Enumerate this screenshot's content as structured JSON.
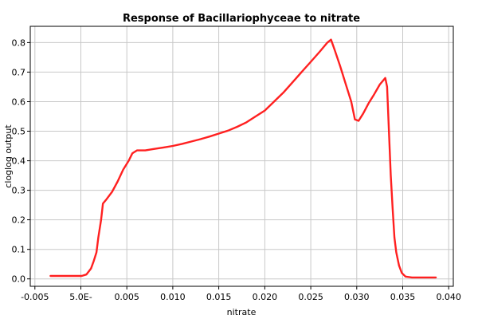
{
  "chart_data": {
    "type": "line",
    "title": "Response of Bacillariophyceae to nitrate",
    "xlabel": "nitrate",
    "ylabel": "cloglog output",
    "xlim": [
      -0.0055,
      0.0405
    ],
    "ylim": [
      -0.025,
      0.855
    ],
    "grid": true,
    "x_ticks": [
      -0.005,
      0.0,
      0.005,
      0.01,
      0.015,
      0.02,
      0.025,
      0.03,
      0.035,
      0.04
    ],
    "x_tick_labels": [
      "-0.005",
      "5.0E-",
      "0.005",
      "0.010",
      "0.015",
      "0.020",
      "0.025",
      "0.030",
      "0.035",
      "0.040"
    ],
    "y_ticks": [
      0.0,
      0.1,
      0.2,
      0.3,
      0.4,
      0.5,
      0.6,
      0.7,
      0.8
    ],
    "y_tick_labels": [
      "0.0",
      "0.1",
      "0.2",
      "0.3",
      "0.4",
      "0.5",
      "0.6",
      "0.7",
      "0.8"
    ],
    "series": [
      {
        "color": "#ff2020",
        "points": [
          [
            -0.0033,
            0.01
          ],
          [
            -0.002,
            0.01
          ],
          [
            -0.001,
            0.01
          ],
          [
            0.0001,
            0.01
          ],
          [
            0.0006,
            0.015
          ],
          [
            0.0011,
            0.035
          ],
          [
            0.0014,
            0.06
          ],
          [
            0.0017,
            0.09
          ],
          [
            0.0019,
            0.14
          ],
          [
            0.0022,
            0.2
          ],
          [
            0.0024,
            0.255
          ],
          [
            0.0028,
            0.27
          ],
          [
            0.0034,
            0.295
          ],
          [
            0.004,
            0.33
          ],
          [
            0.0046,
            0.37
          ],
          [
            0.0052,
            0.4
          ],
          [
            0.0056,
            0.425
          ],
          [
            0.0061,
            0.435
          ],
          [
            0.007,
            0.435
          ],
          [
            0.008,
            0.44
          ],
          [
            0.009,
            0.445
          ],
          [
            0.01,
            0.45
          ],
          [
            0.011,
            0.457
          ],
          [
            0.012,
            0.465
          ],
          [
            0.013,
            0.473
          ],
          [
            0.014,
            0.482
          ],
          [
            0.015,
            0.492
          ],
          [
            0.016,
            0.502
          ],
          [
            0.017,
            0.515
          ],
          [
            0.018,
            0.53
          ],
          [
            0.019,
            0.55
          ],
          [
            0.02,
            0.57
          ],
          [
            0.021,
            0.6
          ],
          [
            0.022,
            0.63
          ],
          [
            0.023,
            0.665
          ],
          [
            0.024,
            0.7
          ],
          [
            0.025,
            0.735
          ],
          [
            0.026,
            0.77
          ],
          [
            0.0268,
            0.8
          ],
          [
            0.0272,
            0.81
          ],
          [
            0.0276,
            0.775
          ],
          [
            0.0282,
            0.72
          ],
          [
            0.0288,
            0.66
          ],
          [
            0.0294,
            0.6
          ],
          [
            0.0298,
            0.54
          ],
          [
            0.0302,
            0.535
          ],
          [
            0.0307,
            0.56
          ],
          [
            0.0313,
            0.595
          ],
          [
            0.0319,
            0.625
          ],
          [
            0.0325,
            0.658
          ],
          [
            0.0331,
            0.68
          ],
          [
            0.0333,
            0.65
          ],
          [
            0.0335,
            0.5
          ],
          [
            0.0337,
            0.35
          ],
          [
            0.0339,
            0.24
          ],
          [
            0.0341,
            0.14
          ],
          [
            0.0343,
            0.09
          ],
          [
            0.0346,
            0.045
          ],
          [
            0.0349,
            0.02
          ],
          [
            0.0353,
            0.008
          ],
          [
            0.036,
            0.005
          ],
          [
            0.037,
            0.005
          ],
          [
            0.038,
            0.005
          ],
          [
            0.0386,
            0.005
          ]
        ]
      }
    ]
  }
}
